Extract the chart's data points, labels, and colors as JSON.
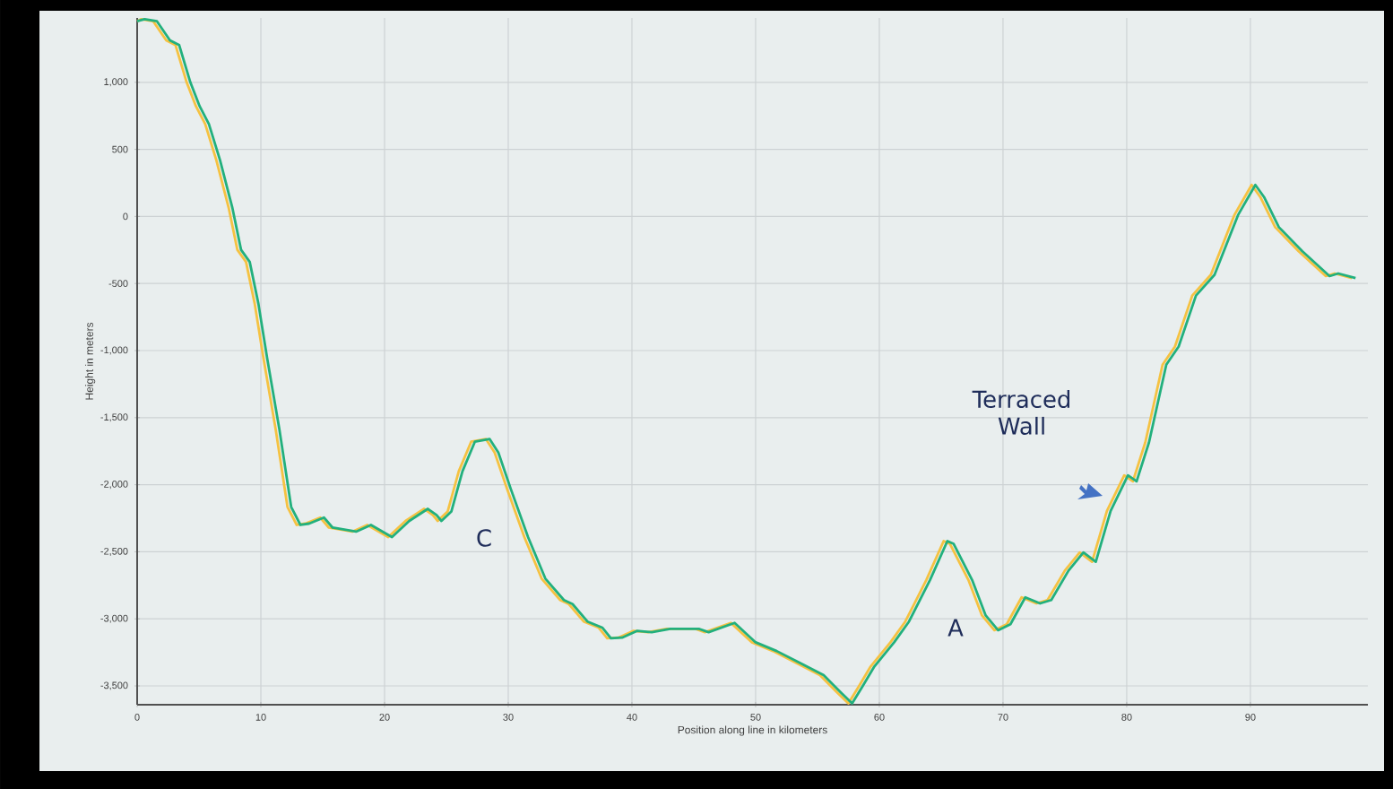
{
  "chart_data": {
    "type": "line",
    "xlabel": "Position along line in kilometers",
    "ylabel": "Height in meters",
    "x": [
      0,
      0.6,
      1.6,
      2.65,
      3.4,
      4.3,
      5.05,
      5.8,
      6.7,
      7.7,
      8.4,
      9.1,
      9.8,
      10.5,
      11.5,
      12.45,
      13.2,
      13.9,
      15.1,
      15.8,
      17.7,
      18.9,
      20.6,
      22.0,
      23.5,
      24.2,
      24.6,
      25.4,
      26.3,
      27.3,
      28.5,
      29.2,
      30.2,
      31.6,
      33.0,
      34.5,
      35.2,
      36.4,
      37.6,
      38.3,
      39.2,
      40.4,
      41.6,
      43.1,
      45.45,
      46.2,
      48.3,
      50.0,
      51.7,
      53.6,
      55.5,
      56.9,
      57.8,
      58.6,
      59.6,
      61.2,
      62.4,
      64.1,
      65.5,
      66.0,
      67.5,
      68.6,
      69.6,
      70.6,
      71.8,
      73.0,
      73.9,
      75.3,
      76.5,
      77.5,
      78.7,
      80.1,
      80.8,
      81.8,
      83.2,
      84.2,
      85.6,
      87.1,
      89.0,
      90.4,
      91.1,
      92.3,
      94.2,
      96.4,
      97.1,
      98.5
    ],
    "series": [
      {
        "color": "#f5c242",
        "x": [
          0,
          0.3,
          1.3,
          2.35,
          3.1,
          4.0,
          4.75,
          5.5,
          6.4,
          7.4,
          8.1,
          8.8,
          9.5,
          10.2,
          11.2,
          12.15,
          12.9,
          13.6,
          14.8,
          15.5,
          17.4,
          18.6,
          20.3,
          21.7,
          23.2,
          23.9,
          24.3,
          25.1,
          26.0,
          27.0,
          28.2,
          28.9,
          29.9,
          31.3,
          32.7,
          34.2,
          34.9,
          36.1,
          37.3,
          38.0,
          38.9,
          40.1,
          41.3,
          42.8,
          45.15,
          45.9,
          48.0,
          49.7,
          51.4,
          53.3,
          55.2,
          56.6,
          57.5,
          58.3,
          59.3,
          60.9,
          62.1,
          63.8,
          65.2,
          65.7,
          67.2,
          68.3,
          69.3,
          70.3,
          71.5,
          72.7,
          73.6,
          75.0,
          76.2,
          77.2,
          78.4,
          79.8,
          80.5,
          81.5,
          82.9,
          83.9,
          85.3,
          86.8,
          88.7,
          90.1,
          90.8,
          92.0,
          93.9,
          96.1,
          96.8,
          98.2
        ],
        "values": [
          1455,
          1470,
          1455,
          1313,
          1277,
          1000,
          822,
          688,
          420,
          63,
          -249,
          -339,
          -650,
          -1052,
          -1588,
          -2165,
          -2300,
          -2290,
          -2245,
          -2320,
          -2350,
          -2300,
          -2390,
          -2270,
          -2180,
          -2225,
          -2270,
          -2200,
          -1900,
          -1680,
          -1660,
          -1760,
          -2030,
          -2390,
          -2700,
          -2860,
          -2890,
          -3020,
          -3065,
          -3145,
          -3140,
          -3090,
          -3100,
          -3075,
          -3075,
          -3100,
          -3030,
          -3175,
          -3240,
          -3330,
          -3420,
          -3550,
          -3630,
          -3510,
          -3355,
          -3175,
          -3020,
          -2710,
          -2420,
          -2440,
          -2710,
          -2975,
          -3085,
          -3040,
          -2840,
          -2885,
          -2860,
          -2640,
          -2505,
          -2575,
          -2195,
          -1930,
          -1975,
          -1685,
          -1105,
          -970,
          -590,
          -435,
          10,
          235,
          145,
          -80,
          -260,
          -445,
          -425,
          -460
        ]
      },
      {
        "color": "#22b07d",
        "values": [
          1455,
          1470,
          1455,
          1313,
          1277,
          1000,
          822,
          688,
          420,
          63,
          -249,
          -339,
          -650,
          -1052,
          -1588,
          -2165,
          -2300,
          -2290,
          -2245,
          -2320,
          -2350,
          -2300,
          -2390,
          -2270,
          -2180,
          -2225,
          -2270,
          -2200,
          -1900,
          -1680,
          -1660,
          -1760,
          -2030,
          -2390,
          -2700,
          -2860,
          -2890,
          -3020,
          -3065,
          -3145,
          -3140,
          -3090,
          -3100,
          -3075,
          -3075,
          -3100,
          -3030,
          -3175,
          -3240,
          -3330,
          -3420,
          -3550,
          -3630,
          -3510,
          -3355,
          -3175,
          -3020,
          -2710,
          -2420,
          -2440,
          -2710,
          -2975,
          -3085,
          -3040,
          -2840,
          -2885,
          -2860,
          -2640,
          -2505,
          -2575,
          -2195,
          -1930,
          -1975,
          -1685,
          -1105,
          -970,
          -590,
          -435,
          10,
          235,
          145,
          -80,
          -260,
          -445,
          -425,
          -460
        ]
      }
    ],
    "xlim": [
      0,
      99.5
    ],
    "ylim": [
      -3640,
      1480
    ],
    "xticks": [
      0,
      10,
      20,
      30,
      40,
      50,
      60,
      70,
      80,
      90
    ],
    "yticks": [
      {
        "value": -3500,
        "label": "-3,500"
      },
      {
        "value": -3000,
        "label": "-3,000"
      },
      {
        "value": -2500,
        "label": "-2,500"
      },
      {
        "value": -2000,
        "label": "-2,000"
      },
      {
        "value": -1500,
        "label": "-1,500"
      },
      {
        "value": -1000,
        "label": "-1,000"
      },
      {
        "value": -500,
        "label": "-500"
      },
      {
        "value": 0,
        "label": "0"
      },
      {
        "value": 500,
        "label": "500"
      },
      {
        "value": 1000,
        "label": "1,000"
      }
    ],
    "annotations": [
      "C",
      "A",
      "Terraced Wall"
    ],
    "grid": true,
    "marker": "none",
    "line_style": "solid"
  }
}
